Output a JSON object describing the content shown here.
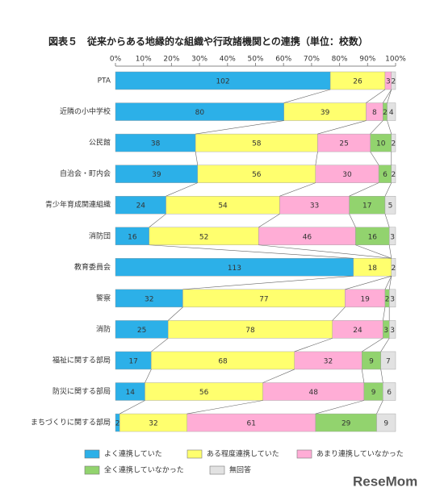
{
  "chart_data": {
    "type": "stacked_percent_barh",
    "title": "図表５　従来からある地縁的な組織や行政諸機関との連携（単位：校数）",
    "categories": [
      "PTA",
      "近隣の小中学校",
      "公民館",
      "自治会・町内会",
      "青少年育成関連組織",
      "消防団",
      "教育委員会",
      "警察",
      "消防",
      "福祉に関する部局",
      "防災に関する部局",
      "まちづくりに関する部局"
    ],
    "series": [
      {
        "name": "よく連携していた",
        "color": "#2cb0e8",
        "values": [
          102,
          80,
          38,
          39,
          24,
          16,
          113,
          32,
          25,
          17,
          14,
          2
        ]
      },
      {
        "name": "ある程度連携していた",
        "color": "#ffff6e",
        "values": [
          26,
          39,
          58,
          56,
          54,
          52,
          18,
          77,
          78,
          68,
          56,
          32
        ]
      },
      {
        "name": "あまり連携していなかった",
        "color": "#ffadd6",
        "values": [
          3,
          8,
          25,
          30,
          33,
          46,
          0,
          19,
          24,
          32,
          48,
          61
        ]
      },
      {
        "name": "全く連携していなかった",
        "color": "#92d36e",
        "values": [
          0,
          2,
          10,
          6,
          17,
          16,
          0,
          2,
          3,
          9,
          9,
          29
        ]
      },
      {
        "name": "無回答",
        "color": "#e2e2e2",
        "values": [
          2,
          4,
          2,
          2,
          5,
          3,
          2,
          3,
          3,
          7,
          6,
          9
        ]
      }
    ],
    "xlim": [
      0,
      100
    ],
    "xticks": [
      {
        "value": 0,
        "label": "0%"
      },
      {
        "value": 10,
        "label": "10%"
      },
      {
        "value": 20,
        "label": "20%"
      },
      {
        "value": 30,
        "label": "30%"
      },
      {
        "value": 40,
        "label": "40%"
      },
      {
        "value": 50,
        "label": "50%"
      },
      {
        "value": 60,
        "label": "60%"
      },
      {
        "value": 70,
        "label": "70%"
      },
      {
        "value": 80,
        "label": "80%"
      },
      {
        "value": 90,
        "label": "90%"
      },
      {
        "value": 100,
        "label": "100%"
      }
    ],
    "watermark": "ReseMom"
  }
}
